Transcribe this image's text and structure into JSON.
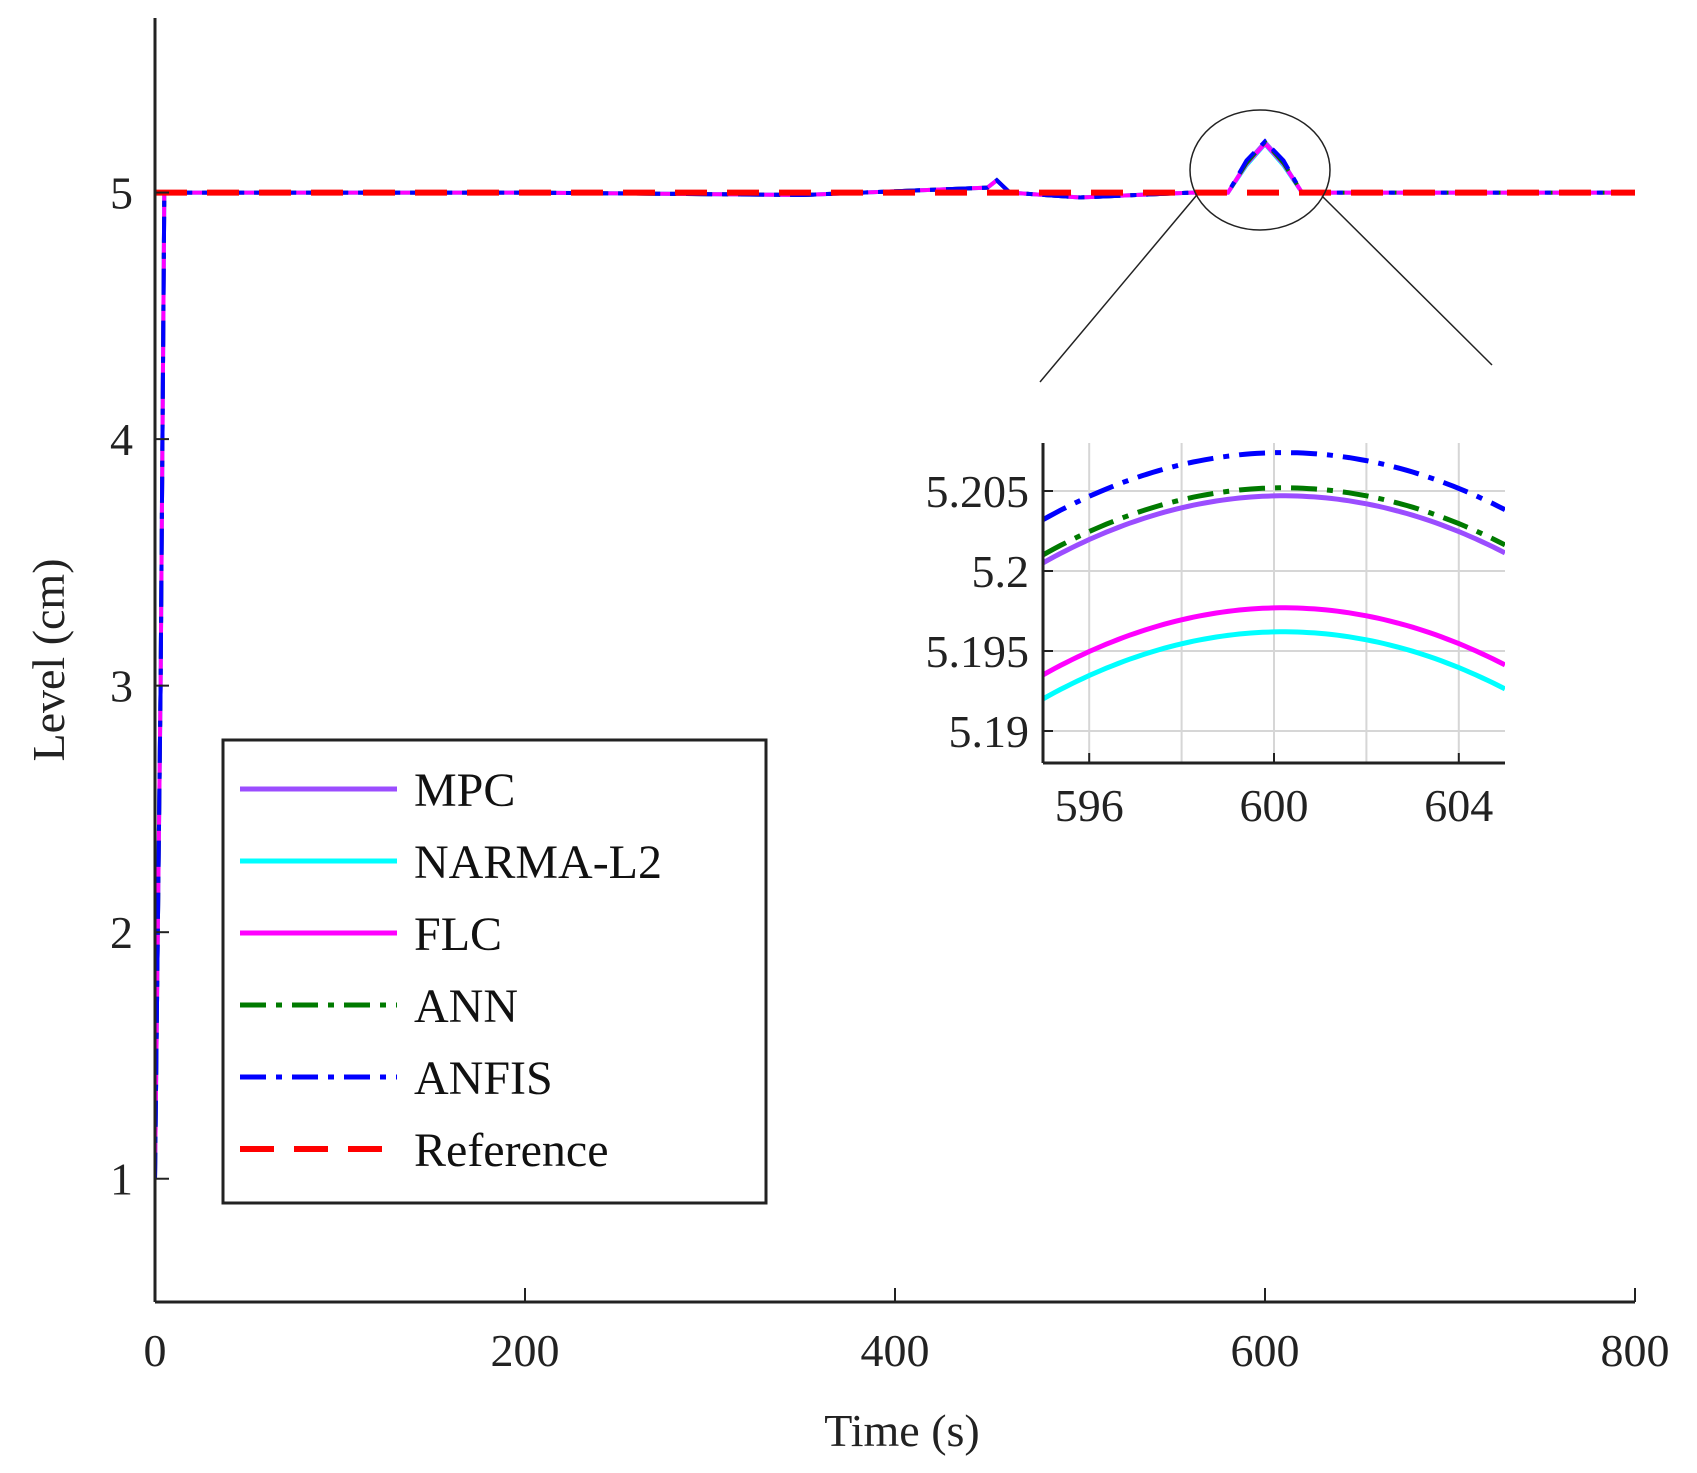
{
  "chart_data": {
    "type": "line",
    "title": "",
    "xlabel": "Time (s)",
    "ylabel": "Level (cm)",
    "xlim": [
      0,
      800
    ],
    "ylim": [
      0.5,
      5.7
    ],
    "xticks": [
      0,
      200,
      400,
      600,
      800
    ],
    "yticks": [
      1,
      2,
      3,
      4,
      5
    ],
    "grid": false,
    "legend_position": "bottom-left",
    "series": [
      {
        "name": "MPC",
        "color": "#9b4dff",
        "style": "solid",
        "points": [
          [
            0,
            1
          ],
          [
            3,
            3.0
          ],
          [
            5,
            5.0
          ],
          [
            200,
            5.0
          ],
          [
            350,
            4.99
          ],
          [
            450,
            5.02
          ],
          [
            455,
            5.05
          ],
          [
            462,
            5.0
          ],
          [
            500,
            4.98
          ],
          [
            560,
            5.0
          ],
          [
            580,
            5.0
          ],
          [
            590,
            5.12
          ],
          [
            600,
            5.205
          ],
          [
            610,
            5.12
          ],
          [
            620,
            5.0
          ],
          [
            800,
            5.0
          ]
        ]
      },
      {
        "name": "NARMA-L2",
        "color": "#00ffff",
        "style": "solid",
        "points": [
          [
            0,
            1
          ],
          [
            3,
            3.0
          ],
          [
            5,
            5.0
          ],
          [
            200,
            5.0
          ],
          [
            350,
            4.99
          ],
          [
            450,
            5.02
          ],
          [
            455,
            5.05
          ],
          [
            462,
            5.0
          ],
          [
            500,
            4.98
          ],
          [
            560,
            5.0
          ],
          [
            580,
            5.0
          ],
          [
            590,
            5.11
          ],
          [
            600,
            5.196
          ],
          [
            610,
            5.11
          ],
          [
            620,
            5.0
          ],
          [
            800,
            5.0
          ]
        ]
      },
      {
        "name": "FLC",
        "color": "#ff00ff",
        "style": "solid",
        "points": [
          [
            0,
            1
          ],
          [
            3,
            3.0
          ],
          [
            5,
            5.0
          ],
          [
            200,
            5.0
          ],
          [
            350,
            4.99
          ],
          [
            450,
            5.02
          ],
          [
            455,
            5.05
          ],
          [
            462,
            5.0
          ],
          [
            500,
            4.98
          ],
          [
            560,
            5.0
          ],
          [
            580,
            5.0
          ],
          [
            590,
            5.115
          ],
          [
            600,
            5.198
          ],
          [
            610,
            5.115
          ],
          [
            620,
            5.0
          ],
          [
            800,
            5.0
          ]
        ]
      },
      {
        "name": "ANN",
        "color": "#007a00",
        "style": "dashdot",
        "points": [
          [
            0,
            1
          ],
          [
            3,
            3.0
          ],
          [
            5,
            5.0
          ],
          [
            200,
            5.0
          ],
          [
            350,
            4.99
          ],
          [
            450,
            5.02
          ],
          [
            455,
            5.05
          ],
          [
            462,
            5.0
          ],
          [
            500,
            4.98
          ],
          [
            560,
            5.0
          ],
          [
            580,
            5.0
          ],
          [
            590,
            5.12
          ],
          [
            600,
            5.205
          ],
          [
            610,
            5.12
          ],
          [
            620,
            5.0
          ],
          [
            800,
            5.0
          ]
        ]
      },
      {
        "name": "ANFIS",
        "color": "#0000ff",
        "style": "dashdot",
        "points": [
          [
            0,
            1
          ],
          [
            3,
            3.0
          ],
          [
            5,
            5.0
          ],
          [
            200,
            5.0
          ],
          [
            350,
            4.99
          ],
          [
            450,
            5.02
          ],
          [
            455,
            5.05
          ],
          [
            462,
            5.0
          ],
          [
            500,
            4.98
          ],
          [
            560,
            5.0
          ],
          [
            580,
            5.0
          ],
          [
            590,
            5.13
          ],
          [
            600,
            5.208
          ],
          [
            610,
            5.13
          ],
          [
            620,
            5.0
          ],
          [
            800,
            5.0
          ]
        ]
      },
      {
        "name": "Reference",
        "color": "#ff0000",
        "style": "dashed",
        "points": [
          [
            0,
            5.0
          ],
          [
            800,
            5.0
          ]
        ]
      }
    ],
    "inset": {
      "xlim": [
        595,
        605
      ],
      "ylim": [
        5.188,
        5.208
      ],
      "xticks": [
        596,
        600,
        604
      ],
      "yticks": [
        5.19,
        5.195,
        5.2,
        5.205
      ],
      "ytick_labels": [
        "5.19",
        "5.195",
        "5.2",
        "5.205"
      ],
      "xgrid": [
        596,
        598,
        600,
        602,
        604
      ],
      "grid": true,
      "zoom_center": [
        600,
        5.2
      ],
      "curves": [
        {
          "name": "MPC",
          "peak_x": 600.2,
          "peak_y": 5.2047,
          "curvature": 0.000155
        },
        {
          "name": "NARMA-L2",
          "peak_x": 600.2,
          "peak_y": 5.1962,
          "curvature": 0.000155
        },
        {
          "name": "FLC",
          "peak_x": 600.2,
          "peak_y": 5.1977,
          "curvature": 0.000155
        },
        {
          "name": "ANN",
          "peak_x": 600.2,
          "peak_y": 5.2052,
          "curvature": 0.000155
        },
        {
          "name": "ANFIS",
          "peak_x": 600.2,
          "peak_y": 5.2074,
          "curvature": 0.000155
        }
      ]
    }
  }
}
